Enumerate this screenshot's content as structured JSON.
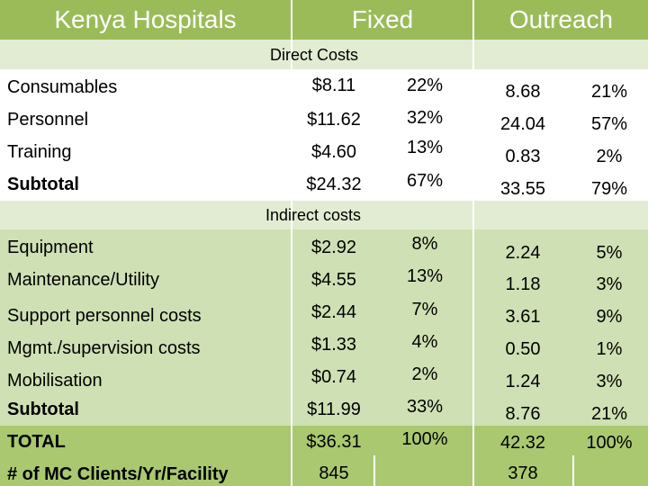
{
  "colors": {
    "header": "#9bbb59",
    "band_light": "#e2ecd2",
    "band_mid": "#cfe0b4",
    "band_total": "#a9c870"
  },
  "header": {
    "title": "Kenya Hospitals",
    "fixed": "Fixed",
    "outreach": "Outreach"
  },
  "direct": {
    "heading": "Direct Costs",
    "rows": [
      {
        "label": "Consumables",
        "fixed_cost": "$8.11",
        "fixed_pct": "22%",
        "out_cost": "8.68",
        "out_pct": "21%"
      },
      {
        "label": "Personnel",
        "fixed_cost": "$11.62",
        "fixed_pct": "32%",
        "out_cost": "24.04",
        "out_pct": "57%"
      },
      {
        "label": "Training",
        "fixed_cost": "$4.60",
        "fixed_pct": "13%",
        "out_cost": "0.83",
        "out_pct": "2%"
      },
      {
        "label": "Subtotal",
        "fixed_cost": "$24.32",
        "fixed_pct": "67%",
        "out_cost": "33.55",
        "out_pct": "79%"
      }
    ]
  },
  "indirect": {
    "heading": "Indirect costs",
    "rows": [
      {
        "label": "Equipment",
        "fixed_cost": "$2.92",
        "fixed_pct": "8%",
        "out_cost": "2.24",
        "out_pct": "5%"
      },
      {
        "label": "Maintenance/Utility",
        "fixed_cost": "$4.55",
        "fixed_pct": "13%",
        "out_cost": "1.18",
        "out_pct": "3%"
      },
      {
        "label": "Support personnel costs",
        "fixed_cost": "$2.44",
        "fixed_pct": "7%",
        "out_cost": "3.61",
        "out_pct": "9%"
      },
      {
        "label": "Mgmt./supervision costs",
        "fixed_cost": "$1.33",
        "fixed_pct": "4%",
        "out_cost": "0.50",
        "out_pct": "1%"
      },
      {
        "label": "Mobilisation",
        "fixed_cost": "$0.74",
        "fixed_pct": "2%",
        "out_cost": "1.24",
        "out_pct": "3%"
      },
      {
        "label": "Subtotal",
        "fixed_cost": "$11.99",
        "fixed_pct": "33%",
        "out_cost": "8.76",
        "out_pct": "21%"
      }
    ]
  },
  "total": {
    "label": "TOTAL",
    "fixed_cost": "$36.31",
    "fixed_pct": "100%",
    "out_cost": "42.32",
    "out_pct": "100%"
  },
  "clients": {
    "label": "# of MC Clients/Yr/Facility",
    "fixed": "845",
    "outreach": "378"
  }
}
